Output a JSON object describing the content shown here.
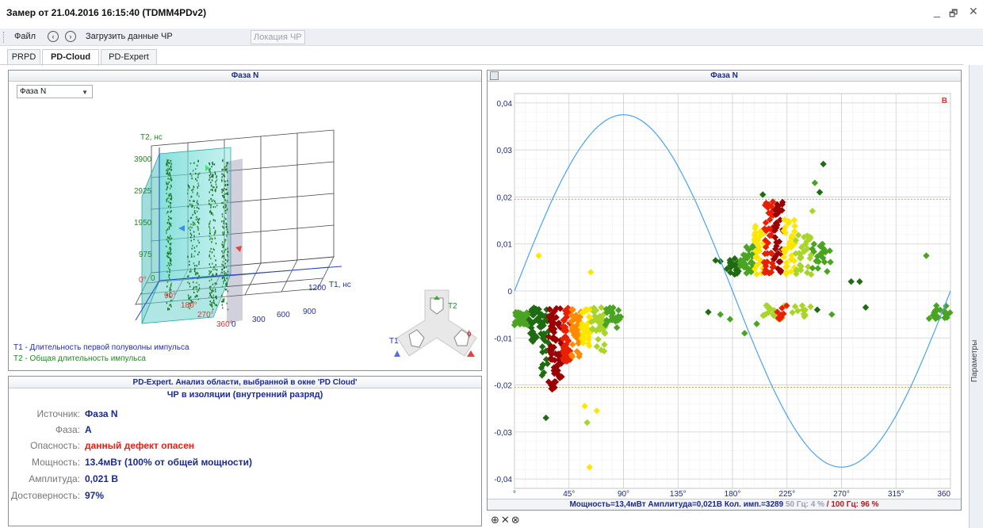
{
  "window": {
    "title": "Замер от 21.04.2016 16:15:40 (TDMM4PDv2)",
    "minimize": "_",
    "restore": "🗗",
    "close": "✕"
  },
  "toolbar": {
    "file": "Файл",
    "back": "‹",
    "forward": "›",
    "load": "Загрузить данные ЧР",
    "location": "Локация ЧР"
  },
  "tabs": [
    "PRPD",
    "PD-Cloud",
    "PD-Expert"
  ],
  "active_tab": "PD-Cloud",
  "cloud": {
    "title": "Фаза N",
    "select_value": "Фаза N",
    "t2_axis": "T2, нс",
    "t2_ticks": [
      "3900",
      "2925",
      "1950",
      "975",
      "0"
    ],
    "t1_axis": "T1, нс",
    "t1_ticks": [
      "0",
      "300",
      "600",
      "900",
      "1200"
    ],
    "phi_ticks": [
      "0°",
      "90°",
      "180°",
      "270°",
      "360°"
    ],
    "nav_t2": "T2",
    "nav_t1": "T1",
    "nav_phi": "ϕ",
    "legend_t1": "T1 - Длительность первой полуволны импульса",
    "legend_t2": "T2 - Общая длительность импульса"
  },
  "expert": {
    "header": "PD-Expert. Анализ области, выбранной в окне 'PD Cloud'",
    "diagnosis": "ЧР в изоляции (внутренний разряд)",
    "rows": [
      {
        "label": "Источник:",
        "value": "Фаза N"
      },
      {
        "label": "Фаза:",
        "value": "A"
      },
      {
        "label": "Опасность:",
        "value": "данный дефект опасен"
      },
      {
        "label": "Мощность:",
        "value": "13.4мВт (100% от общей мощности)"
      },
      {
        "label": "Амплитуда:",
        "value": "0,021 В"
      },
      {
        "label": "Достоверность:",
        "value": "97%"
      }
    ]
  },
  "prpd": {
    "title": "Фаза N",
    "corner_label": "B",
    "status_main": "Мощность=13,4мВт   Амплитуда=0,021В   Кол. имп.=3289",
    "status_50": "50 Гц: 4 %",
    "status_sep": "/",
    "status_100": "100 Гц: 96 %"
  },
  "side_panel_label": "Параметры",
  "bottom_icons": "⊕✕⊗",
  "chart_data": {
    "type": "scatter",
    "title": "Фаза N",
    "xlabel": "",
    "ylabel": "",
    "xlim": [
      0,
      360
    ],
    "ylim": [
      -0.042,
      0.042
    ],
    "x_ticks": [
      "°",
      "45°",
      "90°",
      "135°",
      "180°",
      "225°",
      "270°",
      "315°",
      "360"
    ],
    "y_ticks": [
      "0,04",
      "0,03",
      "0,02",
      "0,01",
      "0",
      "-0,01",
      "-0,02",
      "-0,03",
      "-0,04"
    ],
    "threshold_lines": [
      0.0195,
      -0.0205
    ],
    "sine_amplitude": 0.0375,
    "colors": {
      "dark_green": "#1f6b12",
      "green": "#4aa321",
      "yellow_green": "#a9d42a",
      "yellow": "#ffe600",
      "orange": "#ff8a00",
      "red": "#e82000",
      "dark_red": "#9b0000",
      "sine": "#4aa3f0",
      "threshold": "#f0a030"
    },
    "clusters": [
      {
        "x": [
          0,
          12
        ],
        "y": [
          -0.0075,
          -0.0045
        ],
        "color": "green",
        "n": 40
      },
      {
        "x": [
          12,
          22
        ],
        "y": [
          -0.012,
          -0.0035
        ],
        "color": "dark_green",
        "n": 35
      },
      {
        "x": [
          22,
          28
        ],
        "y": [
          -0.018,
          -0.0035
        ],
        "color": "dark_green",
        "n": 30
      },
      {
        "x": [
          28,
          40
        ],
        "y": [
          -0.021,
          -0.0035
        ],
        "color": "dark_red",
        "n": 70
      },
      {
        "x": [
          40,
          46
        ],
        "y": [
          -0.015,
          -0.0035
        ],
        "color": "red",
        "n": 45
      },
      {
        "x": [
          46,
          55
        ],
        "y": [
          -0.014,
          -0.0035
        ],
        "color": "orange",
        "n": 40
      },
      {
        "x": [
          55,
          63
        ],
        "y": [
          -0.012,
          -0.0035
        ],
        "color": "yellow",
        "n": 35
      },
      {
        "x": [
          63,
          75
        ],
        "y": [
          -0.013,
          -0.0035
        ],
        "color": "yellow_green",
        "n": 35
      },
      {
        "x": [
          75,
          88
        ],
        "y": [
          -0.008,
          -0.0035
        ],
        "color": "green",
        "n": 25
      },
      {
        "x": [
          175,
          185
        ],
        "y": [
          0.0035,
          0.007
        ],
        "color": "dark_green",
        "n": 20
      },
      {
        "x": [
          185,
          198
        ],
        "y": [
          0.0035,
          0.01
        ],
        "color": "green",
        "n": 35
      },
      {
        "x": [
          198,
          206
        ],
        "y": [
          0.0035,
          0.014
        ],
        "color": "yellow",
        "n": 30
      },
      {
        "x": [
          206,
          214
        ],
        "y": [
          0.0035,
          0.019
        ],
        "color": "red",
        "n": 45
      },
      {
        "x": [
          214,
          222
        ],
        "y": [
          0.0035,
          0.019
        ],
        "color": "dark_red",
        "n": 35
      },
      {
        "x": [
          222,
          232
        ],
        "y": [
          0.0035,
          0.016
        ],
        "color": "yellow",
        "n": 35
      },
      {
        "x": [
          232,
          245
        ],
        "y": [
          0.0035,
          0.012
        ],
        "color": "yellow_green",
        "n": 30
      },
      {
        "x": [
          245,
          262
        ],
        "y": [
          0.004,
          0.01
        ],
        "color": "green",
        "n": 25
      },
      {
        "x": [
          205,
          245
        ],
        "y": [
          -0.006,
          -0.003
        ],
        "color": "yellow_green",
        "n": 25
      },
      {
        "x": [
          215,
          225
        ],
        "y": [
          -0.006,
          -0.003
        ],
        "color": "red",
        "n": 8
      },
      {
        "x": [
          342,
          360
        ],
        "y": [
          -0.006,
          -0.003
        ],
        "color": "green",
        "n": 20
      }
    ],
    "points": [
      {
        "x": 20,
        "y": 0.0075,
        "color": "yellow"
      },
      {
        "x": 63,
        "y": 0.004,
        "color": "yellow"
      },
      {
        "x": 26,
        "y": -0.027,
        "color": "dark_green"
      },
      {
        "x": 58,
        "y": -0.0245,
        "color": "yellow"
      },
      {
        "x": 62,
        "y": -0.0375,
        "color": "yellow"
      },
      {
        "x": 68,
        "y": -0.0255,
        "color": "yellow"
      },
      {
        "x": 60,
        "y": -0.028,
        "color": "yellow_green"
      },
      {
        "x": 166,
        "y": 0.0065,
        "color": "dark_green"
      },
      {
        "x": 170,
        "y": 0.0063,
        "color": "dark_green"
      },
      {
        "x": 205,
        "y": 0.0205,
        "color": "dark_green"
      },
      {
        "x": 255,
        "y": 0.027,
        "color": "dark_green"
      },
      {
        "x": 248,
        "y": 0.023,
        "color": "green"
      },
      {
        "x": 252,
        "y": 0.021,
        "color": "dark_green"
      },
      {
        "x": 246,
        "y": 0.017,
        "color": "yellow_green"
      },
      {
        "x": 278,
        "y": 0.002,
        "color": "dark_green"
      },
      {
        "x": 285,
        "y": 0.002,
        "color": "dark_green"
      },
      {
        "x": 340,
        "y": 0.0075,
        "color": "green"
      },
      {
        "x": 160,
        "y": -0.0045,
        "color": "dark_green"
      },
      {
        "x": 170,
        "y": -0.005,
        "color": "green"
      },
      {
        "x": 178,
        "y": -0.006,
        "color": "green"
      },
      {
        "x": 190,
        "y": -0.009,
        "color": "green"
      },
      {
        "x": 200,
        "y": -0.007,
        "color": "green"
      },
      {
        "x": 250,
        "y": -0.004,
        "color": "dark_green"
      },
      {
        "x": 262,
        "y": -0.005,
        "color": "green"
      },
      {
        "x": 290,
        "y": -0.0035,
        "color": "dark_green"
      }
    ]
  }
}
